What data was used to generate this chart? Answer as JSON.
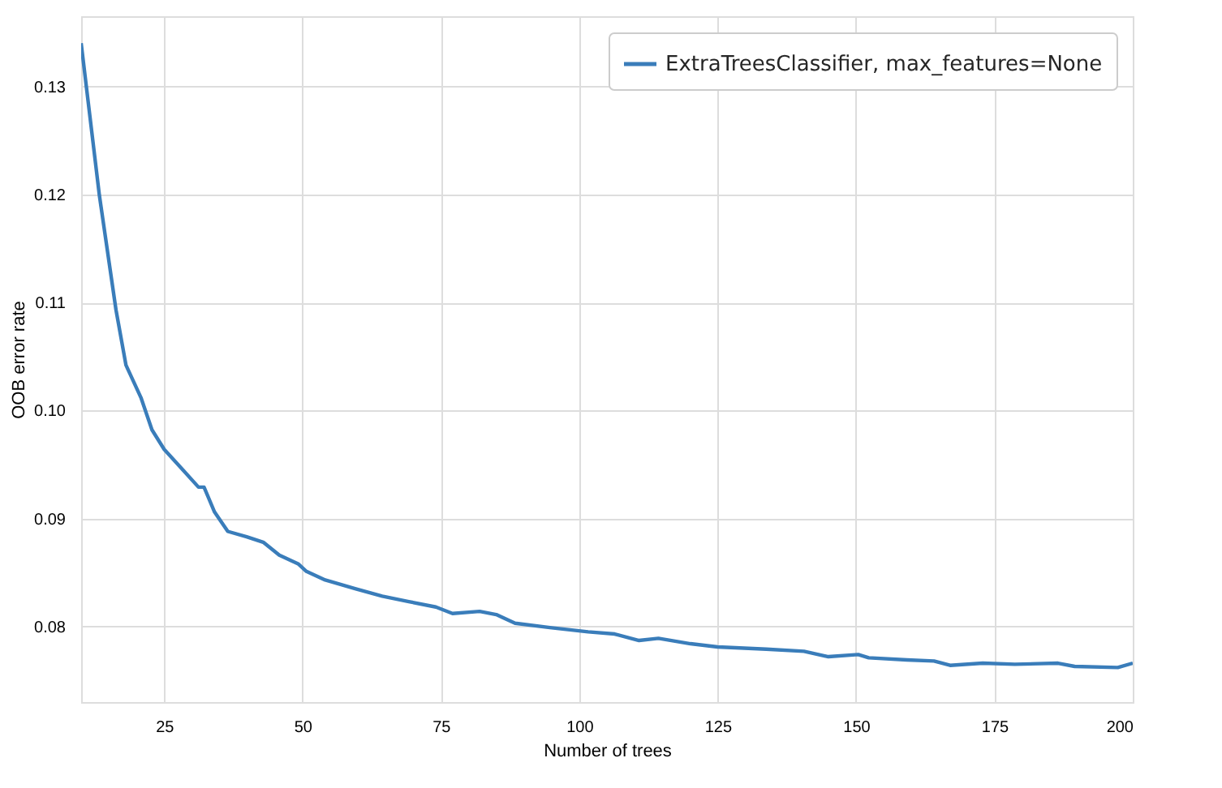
{
  "chart_data": {
    "type": "line",
    "xlabel": "Number of trees",
    "ylabel": "OOB error rate",
    "x": [
      10,
      13.3,
      16.3,
      18.1,
      20.8,
      22.8,
      25,
      28.2,
      31.2,
      32.2,
      34.1,
      36.5,
      39.9,
      42.9,
      45.8,
      49.2,
      50.7,
      54.1,
      59.5,
      64.4,
      69.2,
      74.1,
      77.1,
      82,
      85,
      88.4,
      94.7,
      101.6,
      106.4,
      110.8,
      114.3,
      120.1,
      125,
      133.8,
      140.6,
      145,
      150.4,
      152.3,
      159.2,
      164.1,
      167,
      172.9,
      178.7,
      186.5,
      189.5,
      197.3,
      200
    ],
    "series": [
      {
        "name": "ExtraTreesClassifier, max_features=None",
        "color": "#3a7dba",
        "values": [
          0.134,
          0.1199,
          0.1093,
          0.1042,
          0.1012,
          0.0982,
          0.0964,
          0.0946,
          0.0929,
          0.0929,
          0.0906,
          0.0888,
          0.0883,
          0.0878,
          0.0866,
          0.0858,
          0.0851,
          0.0843,
          0.0835,
          0.0828,
          0.0823,
          0.0818,
          0.0812,
          0.0814,
          0.0811,
          0.0803,
          0.0799,
          0.0795,
          0.0793,
          0.0787,
          0.0789,
          0.0784,
          0.0781,
          0.0779,
          0.0777,
          0.0772,
          0.0774,
          0.0771,
          0.0769,
          0.0768,
          0.0764,
          0.0766,
          0.0765,
          0.0766,
          0.0763,
          0.0762,
          0.0766
        ]
      }
    ],
    "xlim": [
      10,
      200
    ],
    "xticks": [
      25,
      50,
      75,
      100,
      125,
      150,
      175,
      200
    ],
    "ylim": [
      0.073,
      0.1365
    ],
    "yticks": [
      0.08,
      0.09,
      {
        "value": 0.1,
        "label": "0.10"
      },
      0.11,
      0.12,
      0.13
    ],
    "grid": true,
    "legend": "top right",
    "marker": "none",
    "line_style": "solid"
  }
}
